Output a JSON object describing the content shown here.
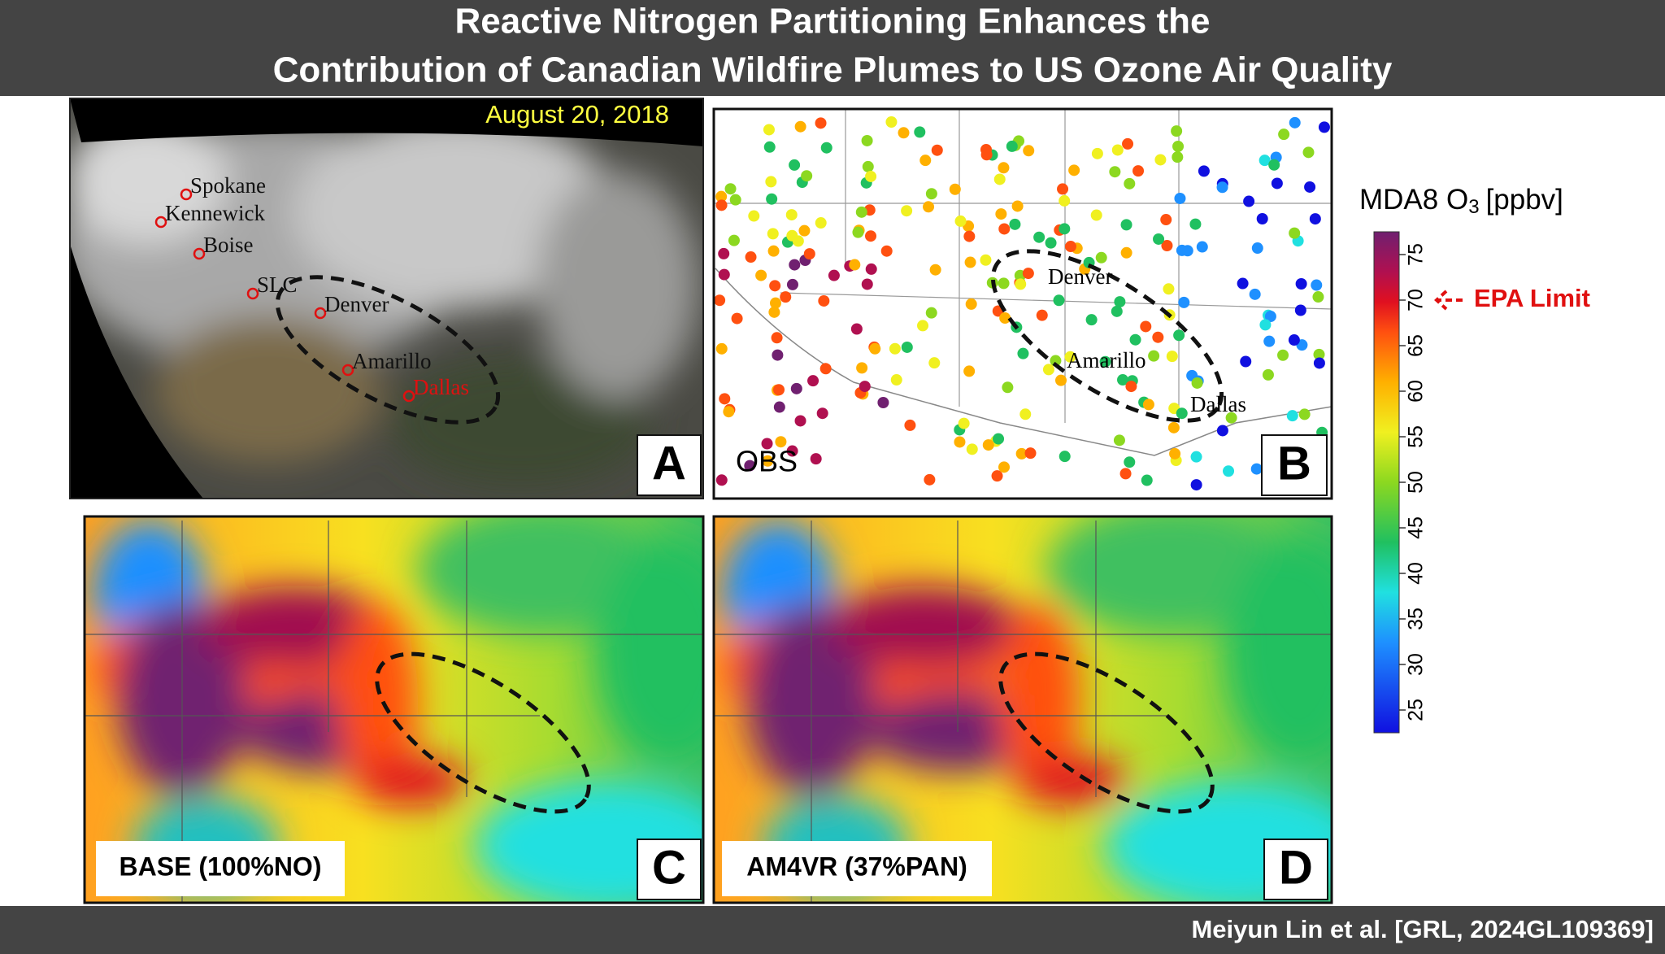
{
  "header": {
    "title_lines": [
      "Reactive Nitrogen Partitioning Enhances the",
      "Contribution of Canadian Wildfire Plumes to US Ozone Air Quality"
    ]
  },
  "panels": [
    {
      "letter": "A",
      "date": "August 20, 2018",
      "cities": [
        "Spokane",
        "Kennewick",
        "Boise",
        "SLC",
        "Denver",
        "Amarillo",
        "Dallas"
      ]
    },
    {
      "letter": "B",
      "tag": "OBS",
      "cities": [
        "Denver",
        "Amarillo",
        "Dallas"
      ]
    },
    {
      "letter": "C",
      "tag": "BASE (100%NO)"
    },
    {
      "letter": "D",
      "tag": "AM4VR (37%PAN)"
    }
  ],
  "colorbar": {
    "label": "MDA8 O",
    "label_sub": "3",
    "label_unit": "[ppbv]",
    "lim": [
      22.5,
      77.5
    ],
    "ticks": [
      25,
      30,
      35,
      40,
      45,
      50,
      55,
      60,
      65,
      70,
      75
    ],
    "epa_limit": {
      "label": "EPA Limit",
      "value": 70
    }
  },
  "footer": {
    "citation": "Meiyun Lin et al. [GRL, 2024GL109369]"
  }
}
